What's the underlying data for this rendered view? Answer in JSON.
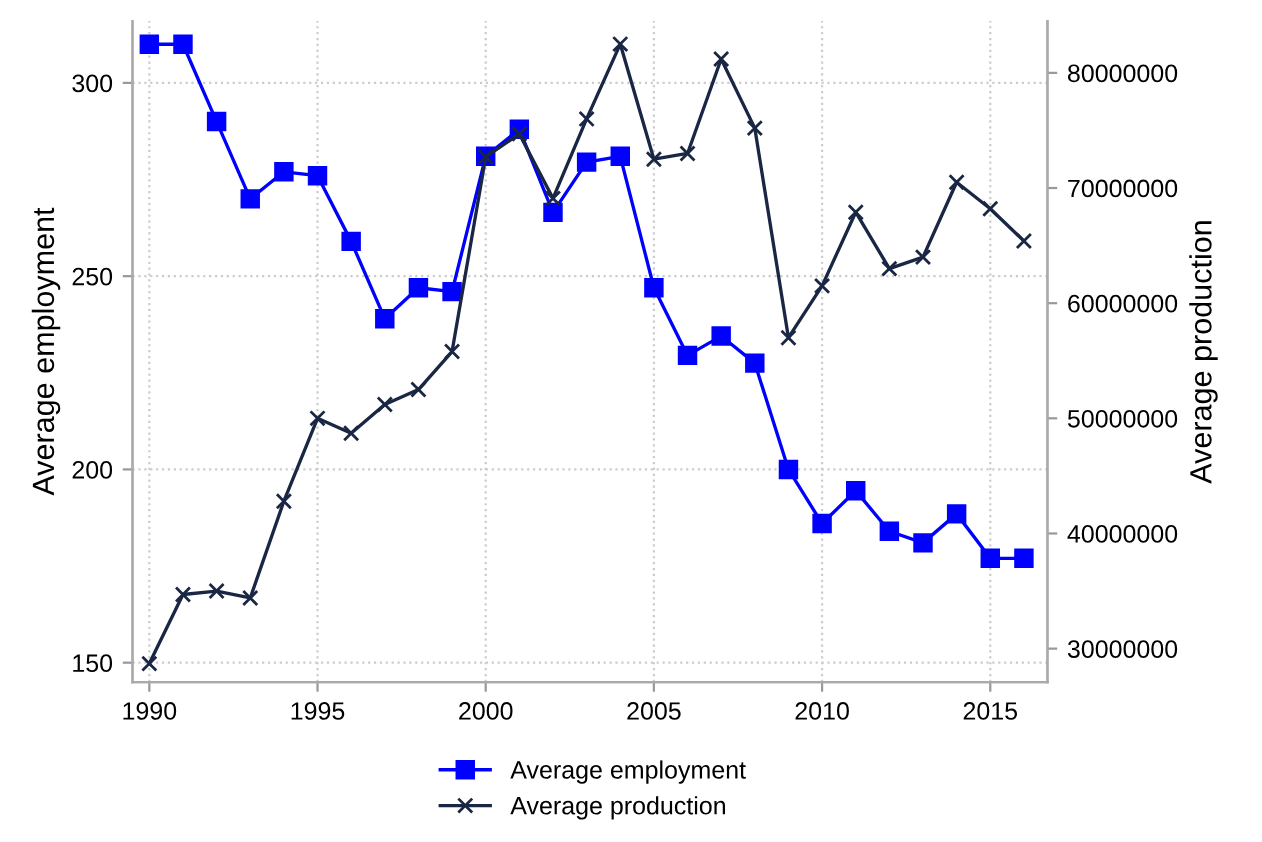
{
  "chart_data": {
    "type": "line",
    "x": [
      1990,
      1991,
      1992,
      1993,
      1994,
      1995,
      1996,
      1997,
      1998,
      1999,
      2000,
      2001,
      2002,
      2003,
      2004,
      2005,
      2006,
      2007,
      2008,
      2009,
      2010,
      2011,
      2012,
      2013,
      2014,
      2015,
      2016
    ],
    "series": [
      {
        "name": "Average employment",
        "color": "#0000ff",
        "marker": "square",
        "values": [
          310,
          310,
          290,
          270,
          277,
          276,
          259,
          239,
          247,
          246,
          281,
          288,
          266.5,
          279.5,
          281,
          247,
          229.5,
          234.5,
          227.5,
          200,
          186,
          194.5,
          184,
          181,
          188.5,
          177,
          177
        ]
      },
      {
        "name": "Average production",
        "color": "#1a2744",
        "marker": "cross",
        "axis": "y2",
        "values": [
          28700000,
          34700000,
          35000000,
          34400000,
          42800000,
          50000000,
          48700000,
          51200000,
          52500000,
          55800000,
          72700000,
          74700000,
          69100000,
          76000000,
          82500000,
          72500000,
          73000000,
          81200000,
          75200000,
          57000000,
          61500000,
          67900000,
          63000000,
          64000000,
          70500000,
          68200000,
          65400000
        ]
      }
    ],
    "ylabel": "Average employment",
    "y2label": "Average production",
    "xlim": [
      1989.5,
      2016.7
    ],
    "xticks": [
      1990,
      1995,
      2000,
      2005,
      2010,
      2015
    ],
    "ylim": [
      145,
      316
    ],
    "yticks": [
      150,
      200,
      250,
      300
    ],
    "y2lim": [
      27100000,
      84500000
    ],
    "y2ticks": [
      30000000,
      40000000,
      50000000,
      60000000,
      70000000,
      80000000
    ],
    "grid": true,
    "legend": "bottom",
    "line_style": "solid"
  }
}
